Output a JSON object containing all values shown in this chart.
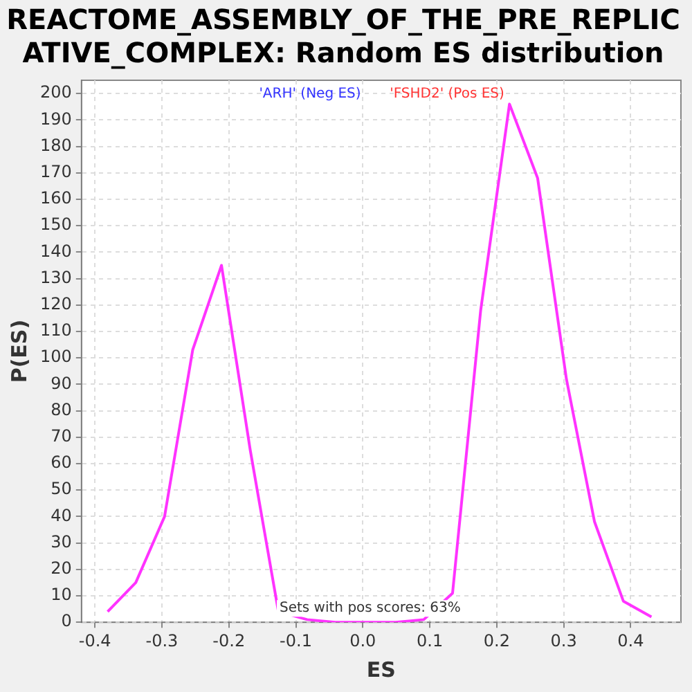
{
  "chart_data": {
    "type": "line",
    "title": "REACTOME_ASSEMBLY_OF_THE_PRE_REPLICATIVE_COMPLEX: Random ES distribution",
    "xlabel": "ES",
    "ylabel": "P(ES)",
    "annotations": [
      "'ARH' (Neg ES)",
      "'FSHD2' (Pos ES)",
      "Sets with pos scores: 63%"
    ],
    "x": [
      -0.381,
      -0.339,
      -0.296,
      -0.254,
      -0.211,
      -0.168,
      -0.126,
      -0.083,
      -0.041,
      0.0,
      0.049,
      0.091,
      0.134,
      0.176,
      0.219,
      0.261,
      0.304,
      0.346,
      0.389,
      0.431
    ],
    "series": [
      {
        "color": "#ff33ff",
        "values": [
          4,
          15,
          40,
          103,
          135,
          65,
          4,
          1,
          0,
          0,
          0,
          1,
          11,
          118,
          196,
          168,
          92,
          38,
          8,
          2
        ]
      }
    ],
    "xlim": [
      -0.42,
      0.475
    ],
    "ylim": [
      0,
      205
    ],
    "xticks": [
      -0.4,
      -0.3,
      -0.2,
      -0.1,
      {
        "value": 0,
        "label": "0.0"
      },
      0.1,
      0.2,
      0.3,
      0.4
    ],
    "yticks": [
      0,
      10,
      20,
      30,
      40,
      50,
      60,
      70,
      80,
      90,
      100,
      110,
      120,
      130,
      140,
      150,
      160,
      170,
      180,
      190,
      200
    ],
    "grid": true,
    "legend": false,
    "marker": "none",
    "line_style": "solid"
  }
}
